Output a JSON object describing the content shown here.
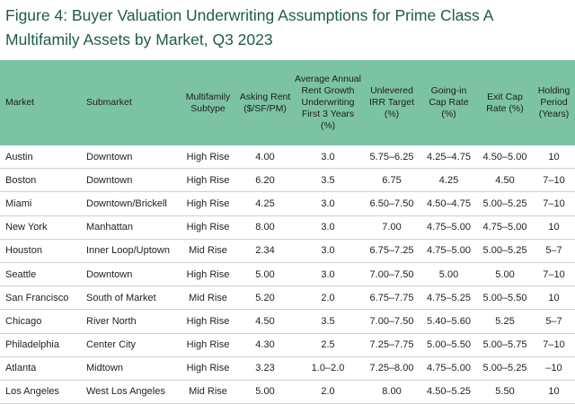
{
  "title": "Figure 4: Buyer Valuation Underwriting Assumptions for Prime Class A Multifamily Assets by Market, Q3 2023",
  "table": {
    "headers": [
      "Market",
      "Submarket",
      "Multifamily Subtype",
      "Asking Rent ($/SF/PM)",
      "Average Annual Rent Growth Underwriting First 3 Years (%)",
      "Unlevered IRR Target (%)",
      "Going-in Cap Rate (%)",
      "Exit Cap Rate (%)",
      "Holding Period (Years)"
    ],
    "rows": [
      [
        "Austin",
        "Downtown",
        "High Rise",
        "4.00",
        "3.0",
        "5.75–6.25",
        "4.25–4.75",
        "4.50–5.00",
        "10"
      ],
      [
        "Boston",
        "Downtown",
        "High Rise",
        "6.20",
        "3.5",
        "6.75",
        "4.25",
        "4.50",
        "7–10"
      ],
      [
        "Miami",
        "Downtown/Brickell",
        "High Rise",
        "4.25",
        "3.0",
        "6.50–7.50",
        "4.50–4.75",
        "5.00–5.25",
        "7–10"
      ],
      [
        "New York",
        "Manhattan",
        "High Rise",
        "8.00",
        "3.0",
        "7.00",
        "4.75–5.00",
        "4.75–5.00",
        "10"
      ],
      [
        "Houston",
        "Inner Loop/Uptown",
        "Mid Rise",
        "2.34",
        "3.0",
        "6.75–7.25",
        "4.75–5.00",
        "5.00–5.25",
        "5–7"
      ],
      [
        "Seattle",
        "Downtown",
        "High Rise",
        "5.00",
        "3.0",
        "7.00–7.50",
        "5.00",
        "5.00",
        "7–10"
      ],
      [
        "San Francisco",
        "South of Market",
        "Mid Rise",
        "5.20",
        "2.0",
        "6.75–7.75",
        "4.75–5.25",
        "5.00–5.50",
        "10"
      ],
      [
        "Chicago",
        "River North",
        "High Rise",
        "4.50",
        "3.5",
        "7.00–7.50",
        "5.40–5.60",
        "5.25",
        "5–7"
      ],
      [
        "Philadelphia",
        "Center City",
        "High Rise",
        "4.30",
        "2.5",
        "7.25–7.75",
        "5.00–5.50",
        "5.00–5.75",
        "7–10"
      ],
      [
        "Atlanta",
        "Midtown",
        "High Rise",
        "3.23",
        "1.0–2.0",
        "7.25–8.00",
        "4.75–5.00",
        "5.00–5.25",
        "–10"
      ],
      [
        "Los Angeles",
        "West Los Angeles",
        "Mid Rise",
        "5.00",
        "2.0",
        "8.00",
        "4.50–5.25",
        "5.50",
        "10"
      ]
    ]
  },
  "colors": {
    "title": "#1f5c45",
    "header_bg": "#7cc3a4",
    "row_divider": "#cfcfcf"
  }
}
